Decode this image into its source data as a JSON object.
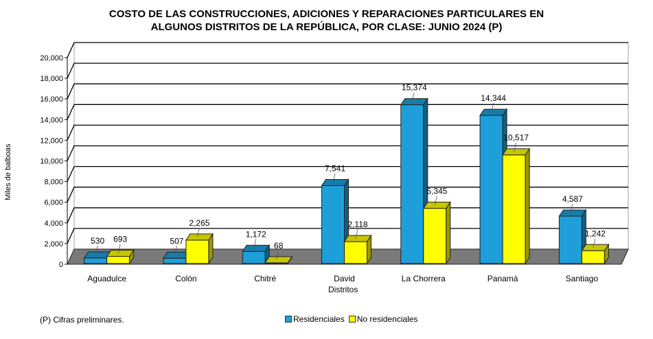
{
  "chart_data": {
    "type": "bar",
    "title_line1": "COSTO DE LAS CONSTRUCCIONES, ADICIONES Y REPARACIONES PARTICULARES EN",
    "title_line2": "ALGUNOS DISTRITOS DE LA REPÚBLICA, POR CLASE: JUNIO 2024 (P)",
    "xlabel": "Distritos",
    "ylabel": "Miles de balboas",
    "ylim": [
      0,
      20000
    ],
    "yticks": [
      0,
      2000,
      4000,
      6000,
      8000,
      10000,
      12000,
      14000,
      16000,
      18000,
      20000
    ],
    "ytick_labels": [
      "0",
      "2,000",
      "4,000",
      "6,000",
      "8,000",
      "10,000",
      "12,000",
      "14,000",
      "16,000",
      "18,000",
      "20,000"
    ],
    "categories": [
      "Aguadulce",
      "Colón",
      "Chitré",
      "David",
      "La Chorrera",
      "Panamá",
      "Santiago"
    ],
    "series": [
      {
        "name": "Residenciales",
        "values": [
          530,
          507,
          1172,
          7541,
          15374,
          14344,
          4587
        ],
        "labels": [
          "530",
          "507",
          "1,172",
          "7,541",
          "15,374",
          "14,344",
          "4,587"
        ],
        "color": "#1e9fd9"
      },
      {
        "name": "No residenciales",
        "values": [
          693,
          2265,
          68,
          2118,
          5345,
          10517,
          1242
        ],
        "labels": [
          "693",
          "2,265",
          "68",
          "2,118",
          "5,345",
          "10,517",
          "1,242"
        ],
        "color": "#ffff00"
      }
    ],
    "grid": true,
    "legend_position": "bottom"
  },
  "note": "(P) Cifras  preliminares."
}
